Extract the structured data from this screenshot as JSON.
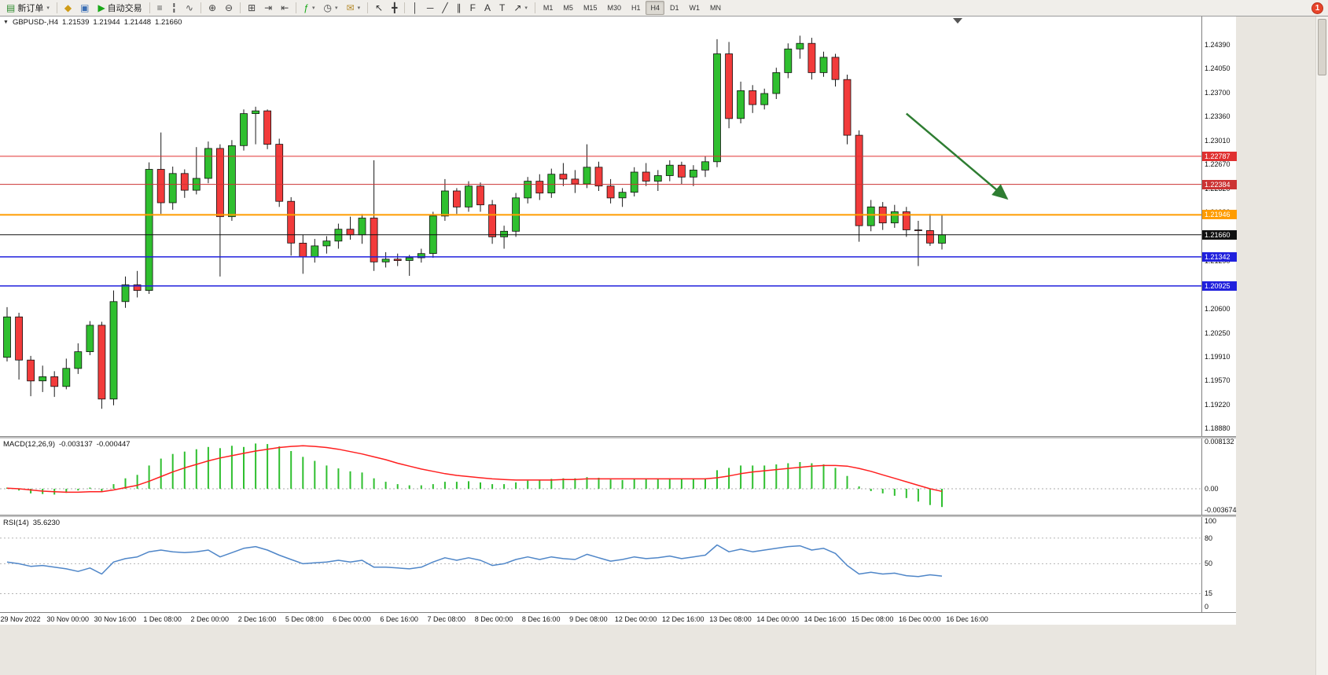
{
  "notification_badge": "1",
  "toolbar": {
    "groups": [
      {
        "name": "orders",
        "items": [
          {
            "name": "new-order-button",
            "glyph": "▤",
            "color": "#2e8b2e",
            "label": "新订单",
            "caret": true
          }
        ]
      },
      {
        "name": "charts",
        "items": [
          {
            "name": "charts-icon",
            "glyph": "◆",
            "color": "#cf9b16"
          },
          {
            "name": "profiles-icon",
            "glyph": "▣",
            "color": "#3b6fb5"
          },
          {
            "name": "autotrading-button",
            "glyph": "▶",
            "color": "#18a818",
            "label": "自动交易"
          }
        ]
      },
      {
        "name": "chart-types",
        "items": [
          {
            "name": "bar-chart-icon",
            "glyph": "≡",
            "color": "#555"
          },
          {
            "name": "candlestick-chart-icon",
            "glyph": "╏",
            "color": "#555"
          },
          {
            "name": "line-chart-icon",
            "glyph": "∿",
            "color": "#555"
          }
        ]
      },
      {
        "name": "zoom",
        "items": [
          {
            "name": "zoom-in-icon",
            "glyph": "⊕",
            "color": "#444"
          },
          {
            "name": "zoom-out-icon",
            "glyph": "⊖",
            "color": "#444"
          }
        ]
      },
      {
        "name": "windows",
        "items": [
          {
            "name": "tile-windows-icon",
            "glyph": "⊞",
            "color": "#444"
          },
          {
            "name": "auto-scroll-icon",
            "glyph": "⇥",
            "color": "#444"
          },
          {
            "name": "chart-shift-icon",
            "glyph": "⇤",
            "color": "#444"
          }
        ]
      },
      {
        "name": "tools",
        "items": [
          {
            "name": "indicators-icon",
            "glyph": "ƒ",
            "color": "#18a818",
            "caret": true
          },
          {
            "name": "periods-icon",
            "glyph": "◷",
            "color": "#444",
            "caret": true
          },
          {
            "name": "templates-icon",
            "glyph": "✉",
            "color": "#b58a2a",
            "caret": true
          }
        ]
      },
      {
        "name": "cursors",
        "items": [
          {
            "name": "cursor-icon",
            "glyph": "↖",
            "color": "#333"
          },
          {
            "name": "crosshair-icon",
            "glyph": "╋",
            "color": "#333"
          }
        ]
      },
      {
        "name": "objects",
        "items": [
          {
            "name": "vertical-line-icon",
            "glyph": "│",
            "color": "#333"
          },
          {
            "name": "horizontal-line-icon",
            "glyph": "─",
            "color": "#333"
          },
          {
            "name": "trendline-icon",
            "glyph": "╱",
            "color": "#333"
          },
          {
            "name": "channel-icon",
            "glyph": "∥",
            "color": "#333"
          },
          {
            "name": "fibonacci-icon",
            "glyph": "F",
            "color": "#333"
          },
          {
            "name": "text-icon",
            "glyph": "A",
            "color": "#333"
          },
          {
            "name": "label-icon",
            "glyph": "T",
            "color": "#333"
          },
          {
            "name": "arrows-icon",
            "glyph": "↗",
            "color": "#333",
            "caret": true
          }
        ]
      }
    ],
    "timeframes": [
      "M1",
      "M5",
      "M15",
      "M30",
      "H1",
      "H4",
      "D1",
      "W1",
      "MN"
    ],
    "active_timeframe": "H4"
  },
  "chart_window": {
    "symbol_period": "GBPUSD-,H4",
    "open": "1.21539",
    "high": "1.21944",
    "low": "1.21448",
    "close": "1.21660"
  },
  "chart_data": {
    "type": "candlestick",
    "title": "GBPUSD-,H4",
    "symbol": "GBPUSD-",
    "timeframe": "H4",
    "colors": {
      "up": "#2fbf2f",
      "down": "#f23b3b",
      "wick": "#1a1a1a",
      "macd_histogram": "#2fbf2f",
      "macd_signal": "#ff1f1f",
      "rsi_line": "#4f86c8",
      "arrow": "#2e7d32"
    },
    "y_axis_labels": [
      "1.24390",
      "1.24050",
      "1.23700",
      "1.23360",
      "1.23010",
      "1.22670",
      "1.22320",
      "1.21980",
      "1.21630",
      "1.21290",
      "1.20940",
      "1.20600",
      "1.20250",
      "1.19910",
      "1.19570",
      "1.19220",
      "1.18880"
    ],
    "price_lines": [
      {
        "label": "1.22787",
        "price": 1.22787,
        "color": "#e03030",
        "width": 1,
        "kind": "resistance"
      },
      {
        "label": "1.22384",
        "price": 1.22384,
        "color": "#cc3333",
        "width": 1,
        "kind": "resistance"
      },
      {
        "label": "1.21946",
        "price": 1.21946,
        "color": "#ff9c00",
        "width": 2,
        "kind": "pivot"
      },
      {
        "label": "1.21660",
        "price": 1.2166,
        "color": "#111111",
        "width": 1,
        "kind": "current-bid"
      },
      {
        "label": "1.21342",
        "price": 1.21342,
        "color": "#2020dd",
        "width": 1.5,
        "kind": "support"
      },
      {
        "label": "1.20925",
        "price": 1.20925,
        "color": "#2020dd",
        "width": 1.5,
        "kind": "support"
      }
    ],
    "x_labels": [
      "29 Nov 2022",
      "30 Nov 00:00",
      "30 Nov 16:00",
      "1 Dec 08:00",
      "2 Dec 00:00",
      "2 Dec 16:00",
      "5 Dec 08:00",
      "6 Dec 00:00",
      "6 Dec 16:00",
      "7 Dec 08:00",
      "8 Dec 00:00",
      "8 Dec 16:00",
      "9 Dec 08:00",
      "12 Dec 00:00",
      "12 Dec 16:00",
      "13 Dec 08:00",
      "14 Dec 00:00",
      "14 Dec 16:00",
      "15 Dec 08:00",
      "16 Dec 00:00",
      "16 Dec 16:00"
    ],
    "arrow_annotation": {
      "from_bar": 76,
      "from_price": 1.234,
      "to_bar": 84.5,
      "to_price": 1.2218,
      "color": "#2e7d32"
    },
    "candles": [
      [
        1.199,
        1.2062,
        1.1984,
        1.2048
      ],
      [
        1.2048,
        1.2054,
        1.1958,
        1.1986
      ],
      [
        1.1986,
        1.1992,
        1.1934,
        1.1956
      ],
      [
        1.1956,
        1.1978,
        1.194,
        1.1962
      ],
      [
        1.1962,
        1.197,
        1.1933,
        1.1948
      ],
      [
        1.1948,
        1.1988,
        1.1944,
        1.1974
      ],
      [
        1.1974,
        1.201,
        1.1966,
        1.1998
      ],
      [
        1.1998,
        1.2042,
        1.1993,
        1.2036
      ],
      [
        1.2036,
        1.2041,
        1.1916,
        1.193
      ],
      [
        1.193,
        1.2086,
        1.1921,
        1.207
      ],
      [
        1.207,
        1.2106,
        1.2061,
        1.2094
      ],
      [
        1.2094,
        1.2114,
        1.2076,
        1.2086
      ],
      [
        1.2086,
        1.227,
        1.2081,
        1.226
      ],
      [
        1.226,
        1.2313,
        1.2196,
        1.2212
      ],
      [
        1.2212,
        1.2264,
        1.2202,
        1.2254
      ],
      [
        1.2254,
        1.226,
        1.2219,
        1.223
      ],
      [
        1.223,
        1.2292,
        1.2224,
        1.2247
      ],
      [
        1.2247,
        1.23,
        1.224,
        1.229
      ],
      [
        1.229,
        1.2296,
        1.2106,
        1.2192
      ],
      [
        1.2192,
        1.2302,
        1.2186,
        1.2294
      ],
      [
        1.2294,
        1.2346,
        1.2287,
        1.234
      ],
      [
        1.234,
        1.235,
        1.2296,
        1.2344
      ],
      [
        1.2344,
        1.2346,
        1.2289,
        1.2296
      ],
      [
        1.2296,
        1.2304,
        1.2206,
        1.2214
      ],
      [
        1.2214,
        1.222,
        1.2136,
        1.2154
      ],
      [
        1.2154,
        1.2166,
        1.211,
        1.2134
      ],
      [
        1.2134,
        1.216,
        1.2126,
        1.215
      ],
      [
        1.215,
        1.2164,
        1.2139,
        1.2157
      ],
      [
        1.2157,
        1.2182,
        1.2146,
        1.2174
      ],
      [
        1.2174,
        1.2192,
        1.2159,
        1.2166
      ],
      [
        1.2166,
        1.2196,
        1.2153,
        1.219
      ],
      [
        1.219,
        1.2273,
        1.2114,
        1.2127
      ],
      [
        1.2127,
        1.2141,
        1.2119,
        1.2131
      ],
      [
        1.2131,
        1.2139,
        1.2121,
        1.2129
      ],
      [
        1.2129,
        1.2137,
        1.2107,
        1.2133
      ],
      [
        1.2133,
        1.2146,
        1.2126,
        1.2139
      ],
      [
        1.2139,
        1.2199,
        1.2133,
        1.2193
      ],
      [
        1.2193,
        1.2246,
        1.2186,
        1.2229
      ],
      [
        1.2229,
        1.2233,
        1.2196,
        1.2206
      ],
      [
        1.2206,
        1.2243,
        1.2199,
        1.2236
      ],
      [
        1.2236,
        1.2241,
        1.2199,
        1.2209
      ],
      [
        1.2209,
        1.2216,
        1.2153,
        1.2163
      ],
      [
        1.2163,
        1.2179,
        1.2146,
        1.2171
      ],
      [
        1.2171,
        1.2226,
        1.2163,
        1.2219
      ],
      [
        1.2219,
        1.2249,
        1.2211,
        1.2243
      ],
      [
        1.2243,
        1.2253,
        1.2216,
        1.2226
      ],
      [
        1.2226,
        1.2261,
        1.2219,
        1.2253
      ],
      [
        1.2253,
        1.2269,
        1.2236,
        1.2246
      ],
      [
        1.2246,
        1.2259,
        1.2226,
        1.2239
      ],
      [
        1.2239,
        1.2296,
        1.2233,
        1.2263
      ],
      [
        1.2263,
        1.2271,
        1.2229,
        1.2236
      ],
      [
        1.2236,
        1.2246,
        1.2211,
        1.2219
      ],
      [
        1.2219,
        1.2233,
        1.2206,
        1.2227
      ],
      [
        1.2227,
        1.2263,
        1.2221,
        1.2256
      ],
      [
        1.2256,
        1.2269,
        1.2236,
        1.2243
      ],
      [
        1.2243,
        1.2259,
        1.2229,
        1.2251
      ],
      [
        1.2251,
        1.2273,
        1.2243,
        1.2266
      ],
      [
        1.2266,
        1.2271,
        1.2239,
        1.2249
      ],
      [
        1.2249,
        1.2266,
        1.2236,
        1.2259
      ],
      [
        1.2259,
        1.2279,
        1.2249,
        1.2271
      ],
      [
        1.2271,
        1.2447,
        1.2263,
        1.2426
      ],
      [
        1.2426,
        1.2443,
        1.2319,
        1.2333
      ],
      [
        1.2333,
        1.2386,
        1.2326,
        1.2373
      ],
      [
        1.2373,
        1.2381,
        1.2341,
        1.2353
      ],
      [
        1.2353,
        1.2376,
        1.2346,
        1.2369
      ],
      [
        1.2369,
        1.2406,
        1.2361,
        1.2399
      ],
      [
        1.2399,
        1.2441,
        1.2391,
        1.2433
      ],
      [
        1.2433,
        1.2452,
        1.2419,
        1.2441
      ],
      [
        1.2441,
        1.2449,
        1.2389,
        1.2399
      ],
      [
        1.2399,
        1.2429,
        1.2393,
        1.2421
      ],
      [
        1.2421,
        1.2426,
        1.2379,
        1.2389
      ],
      [
        1.2389,
        1.2396,
        1.2296,
        1.2309
      ],
      [
        1.2309,
        1.2316,
        1.2156,
        1.2179
      ],
      [
        1.2179,
        1.2216,
        1.2171,
        1.2206
      ],
      [
        1.2206,
        1.2213,
        1.2173,
        1.2183
      ],
      [
        1.2183,
        1.2209,
        1.2176,
        1.2199
      ],
      [
        1.2199,
        1.2206,
        1.2163,
        1.2173
      ],
      [
        1.2173,
        1.2186,
        1.2121,
        1.2172
      ],
      [
        1.2172,
        1.2196,
        1.215,
        1.2154
      ],
      [
        1.21539,
        1.21944,
        1.21448,
        1.2166
      ]
    ],
    "macd": {
      "name": "MACD(12,26,9)",
      "main_value": "-0.003137",
      "signal_value": "-0.000447",
      "scale_max": "0.008132",
      "scale_zero": "0.00",
      "scale_min": "-0.003674",
      "histogram": [
        0.0002,
        -0.0003,
        -0.0008,
        -0.0009,
        -0.001,
        -0.0007,
        -0.0003,
        0.0002,
        -0.0004,
        0.0008,
        0.0018,
        0.0024,
        0.004,
        0.0052,
        0.006,
        0.0064,
        0.0068,
        0.0072,
        0.007,
        0.0074,
        0.0072,
        0.0078,
        0.0077,
        0.0073,
        0.0065,
        0.0055,
        0.0048,
        0.004,
        0.0035,
        0.003,
        0.0028,
        0.0018,
        0.0012,
        0.0008,
        0.0006,
        0.0006,
        0.0008,
        0.0012,
        0.0012,
        0.0013,
        0.0011,
        0.0008,
        0.0008,
        0.0011,
        0.0014,
        0.0015,
        0.0017,
        0.0018,
        0.0018,
        0.002,
        0.0019,
        0.0016,
        0.0015,
        0.0017,
        0.0017,
        0.0017,
        0.0018,
        0.0017,
        0.0017,
        0.0018,
        0.0032,
        0.0036,
        0.004,
        0.004,
        0.004,
        0.0042,
        0.0044,
        0.0046,
        0.0044,
        0.0042,
        0.0036,
        0.0022,
        0.0004,
        -0.0004,
        -0.0008,
        -0.0012,
        -0.0016,
        -0.0022,
        -0.0028,
        -0.003137
      ],
      "signal": [
        0.0001,
        0.0,
        -0.0002,
        -0.0004,
        -0.0005,
        -0.0006,
        -0.0006,
        -0.0005,
        -0.0005,
        -0.0002,
        0.0002,
        0.0006,
        0.0013,
        0.0021,
        0.0029,
        0.0036,
        0.0042,
        0.0048,
        0.0053,
        0.0057,
        0.0061,
        0.0065,
        0.0068,
        0.0071,
        0.0073,
        0.0074,
        0.0073,
        0.0071,
        0.0068,
        0.0064,
        0.006,
        0.0055,
        0.005,
        0.0044,
        0.0039,
        0.0034,
        0.003,
        0.0026,
        0.0023,
        0.0021,
        0.0019,
        0.0017,
        0.0016,
        0.0015,
        0.0015,
        0.0015,
        0.0015,
        0.0016,
        0.0016,
        0.0017,
        0.0017,
        0.0017,
        0.0017,
        0.0017,
        0.0017,
        0.0017,
        0.0017,
        0.0017,
        0.0017,
        0.0017,
        0.0019,
        0.0022,
        0.0026,
        0.0029,
        0.0031,
        0.0033,
        0.0035,
        0.0037,
        0.0039,
        0.004,
        0.004,
        0.0039,
        0.0035,
        0.003,
        0.0024,
        0.0018,
        0.0012,
        0.0006,
        0.0,
        -0.000447
      ]
    },
    "rsi": {
      "name": "RSI(14)",
      "value": "35.6230",
      "scale": [
        "100",
        "80",
        "50",
        "15",
        "0"
      ],
      "levels": [
        80,
        50,
        15
      ],
      "values": [
        52,
        50,
        47,
        48,
        46,
        44,
        41,
        45,
        38,
        52,
        56,
        58,
        64,
        66,
        64,
        63,
        64,
        66,
        58,
        63,
        68,
        70,
        66,
        60,
        55,
        50,
        51,
        52,
        54,
        52,
        54,
        46,
        46,
        45,
        44,
        46,
        52,
        57,
        54,
        57,
        54,
        48,
        50,
        55,
        58,
        55,
        58,
        56,
        55,
        61,
        57,
        53,
        55,
        58,
        56,
        57,
        59,
        56,
        58,
        60,
        72,
        64,
        67,
        64,
        66,
        68,
        70,
        71,
        66,
        68,
        62,
        48,
        38,
        40,
        38,
        39,
        36,
        35,
        37,
        35.6
      ]
    }
  }
}
